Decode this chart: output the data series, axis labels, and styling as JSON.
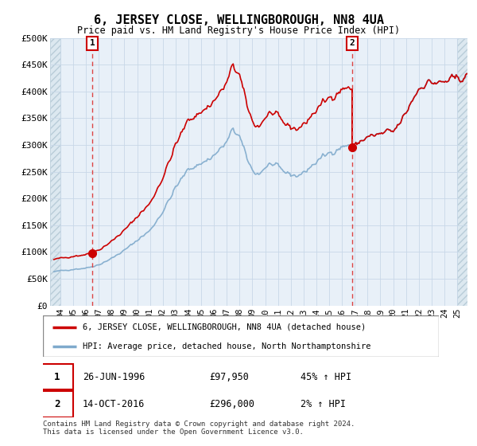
{
  "title": "6, JERSEY CLOSE, WELLINGBOROUGH, NN8 4UA",
  "subtitle": "Price paid vs. HM Land Registry's House Price Index (HPI)",
  "ylabel_values": [
    "£0",
    "£50K",
    "£100K",
    "£150K",
    "£200K",
    "£250K",
    "£300K",
    "£350K",
    "£400K",
    "£450K",
    "£500K"
  ],
  "y_values": [
    0,
    50000,
    100000,
    150000,
    200000,
    250000,
    300000,
    350000,
    400000,
    450000,
    500000
  ],
  "ylim": [
    0,
    500000
  ],
  "sale1_date": "26-JUN-1996",
  "sale1_price": 97950,
  "sale2_date": "14-OCT-2016",
  "sale2_price": 296000,
  "sale1_x": 1996.49,
  "sale2_x": 2016.79,
  "legend_line1": "6, JERSEY CLOSE, WELLINGBOROUGH, NN8 4UA (detached house)",
  "legend_line2": "HPI: Average price, detached house, North Northamptonshire",
  "table_row1": [
    "1",
    "26-JUN-1996",
    "£97,950",
    "45% ↑ HPI"
  ],
  "table_row2": [
    "2",
    "14-OCT-2016",
    "£296,000",
    "2% ↑ HPI"
  ],
  "footer": "Contains HM Land Registry data © Crown copyright and database right 2024.\nThis data is licensed under the Open Government Licence v3.0.",
  "price_line_color": "#cc0000",
  "hpi_line_color": "#7faacc",
  "annotation_box_color": "#cc0000",
  "dashed_line_color": "#dd4444",
  "grid_color": "#c8d8e8",
  "bg_color": "#ddeeff",
  "plot_bg_color": "#e8f0f8",
  "hatch_bg_color": "#dde8f0",
  "xlim_start": 1993.2,
  "xlim_end": 2025.8,
  "hatch_end": 1994.0,
  "hatch_start_right": 2025.0,
  "xticks": [
    1994,
    1995,
    1996,
    1997,
    1998,
    1999,
    2000,
    2001,
    2002,
    2003,
    2004,
    2005,
    2006,
    2007,
    2008,
    2009,
    2010,
    2011,
    2012,
    2013,
    2014,
    2015,
    2016,
    2017,
    2018,
    2019,
    2020,
    2021,
    2022,
    2023,
    2024,
    2025
  ]
}
